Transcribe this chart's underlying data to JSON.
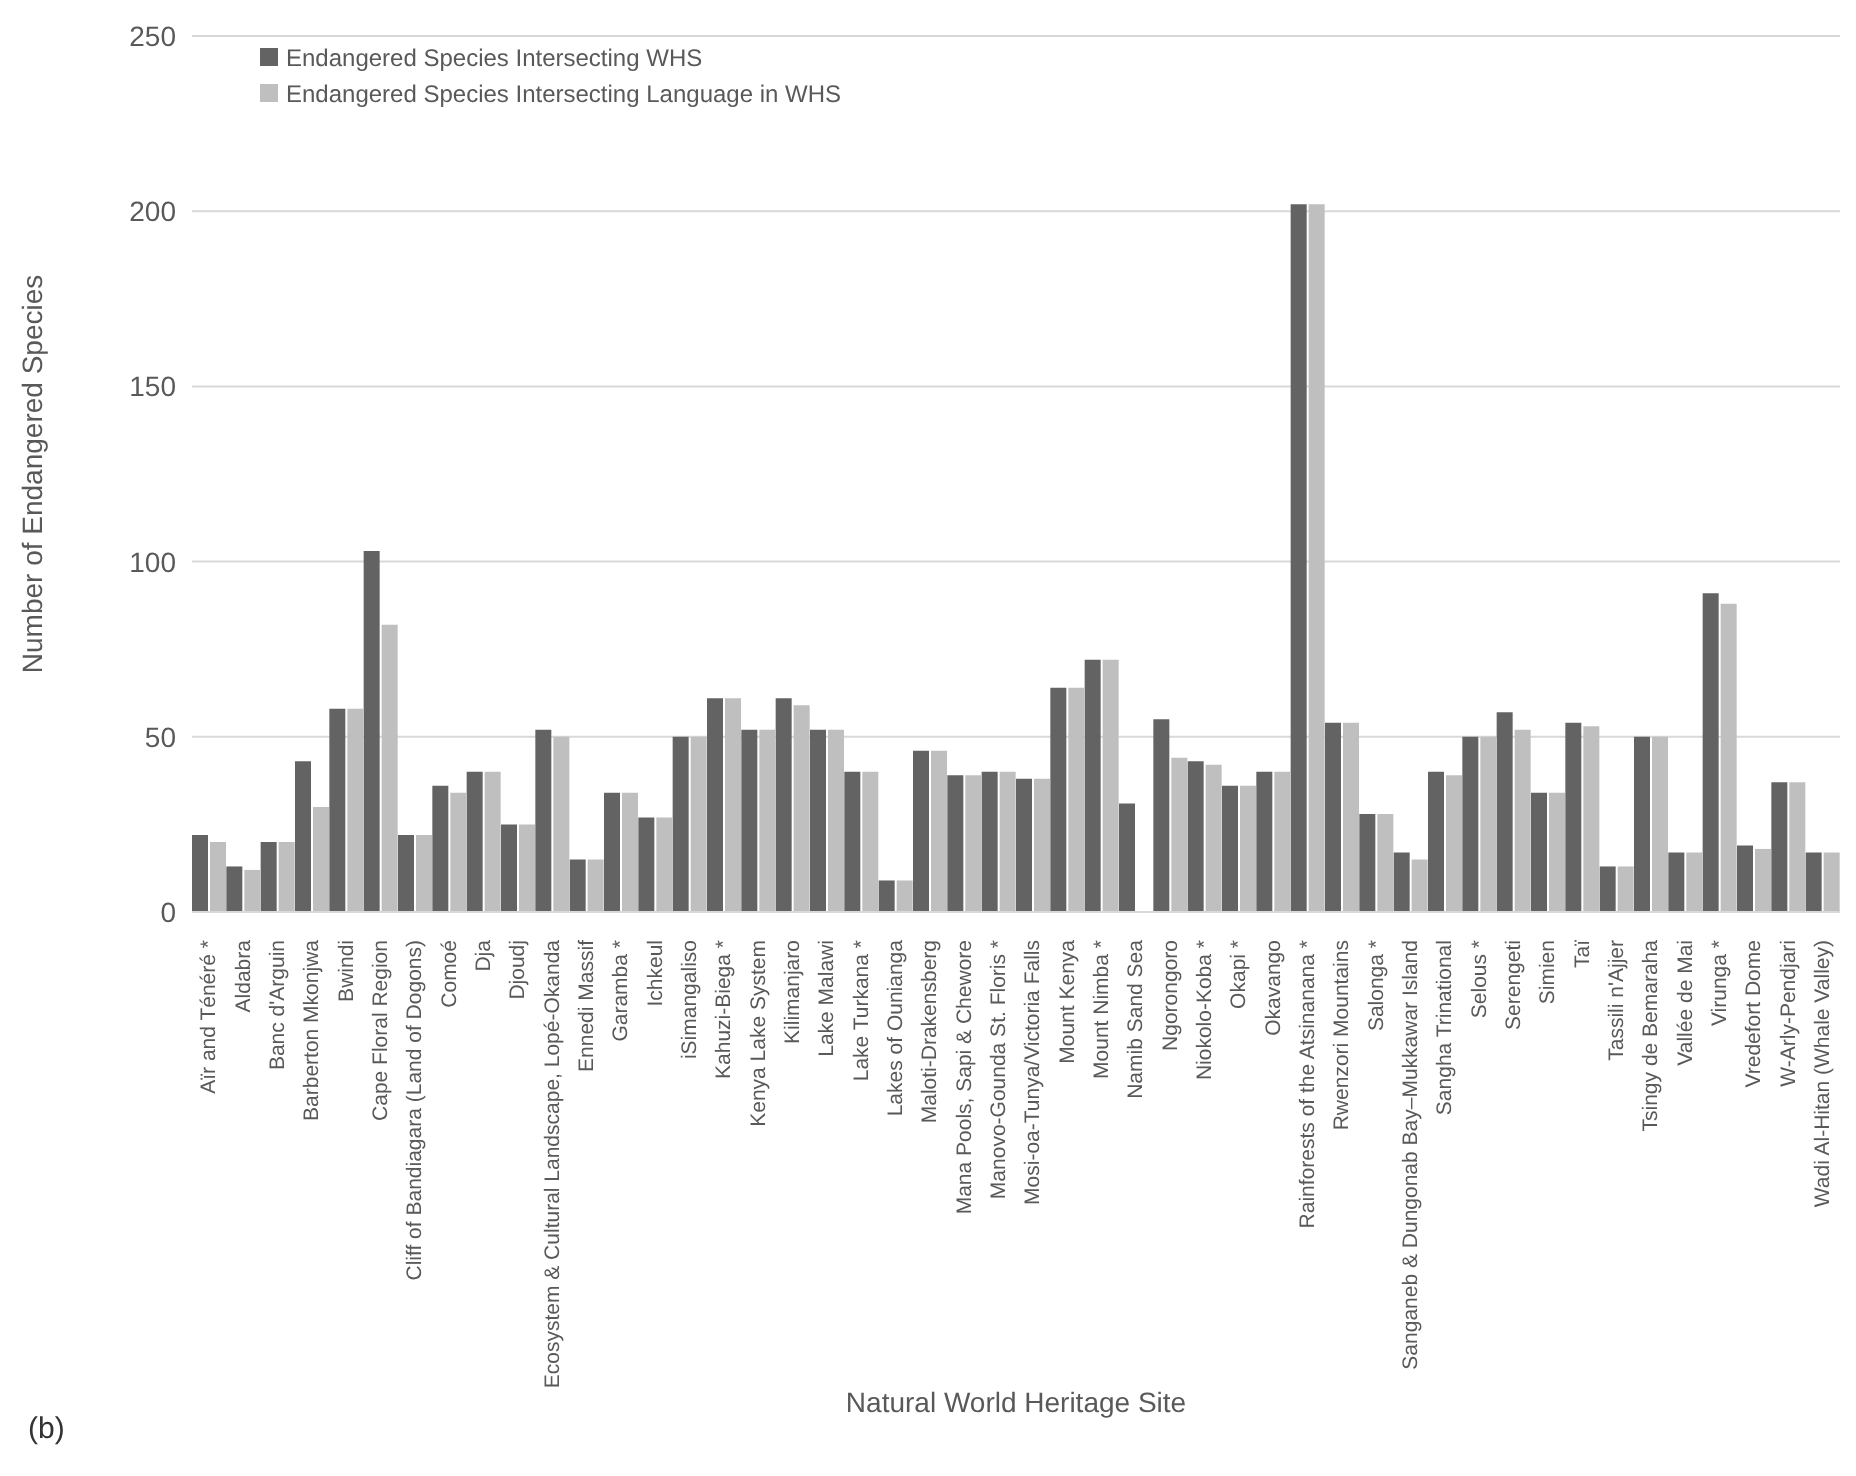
{
  "chart_data": {
    "type": "bar",
    "xlabel": "Natural World Heritage Site",
    "ylabel": "Number of Endangered Species",
    "annotations": [
      "(b)"
    ],
    "categories": [
      "Aïr and Ténéré *",
      "Aldabra",
      "Banc d'Arguin",
      "Barberton Mkonjwa",
      "Bwindi",
      "Cape Floral Region",
      "Cliff of Bandiagara (Land of Dogons)",
      "Comoé",
      "Dja",
      "Djoudj",
      "Ecosystem & Cultural Landscape, Lopé-Okanda",
      "Ennedi Massif",
      "Garamba *",
      "Ichkeul",
      "iSimangaliso",
      "Kahuzi-Biega *",
      "Kenya Lake System",
      "Kilimanjaro",
      "Lake Malawi",
      "Lake Turkana *",
      "Lakes of Ounianga",
      "Maloti-Drakensberg",
      "Mana Pools, Sapi & Chewore",
      "Manovo-Gounda St. Floris *",
      "Mosi-oa-Tunya/Victoria Falls",
      "Mount Kenya",
      "Mount Nimba *",
      "Namib Sand Sea",
      "Ngorongoro",
      "Niokolo-Koba *",
      "Okapi *",
      "Okavango",
      "Rainforests of the Atsinanana *",
      "Rwenzori Mountains",
      "Salonga *",
      "Sanganeb & Dungonab Bay–Mukkawar Island",
      "Sangha Trinational",
      "Selous *",
      "Serengeti",
      "Simien",
      "Taï",
      "Tassili n'Ajjer",
      "Tsingy de Bemaraha",
      "Vallée de Mai",
      "Virunga *",
      "Vredefort Dome",
      "W-Arly-Pendjari",
      "Wadi Al-Hitan (Whale Valley)"
    ],
    "series": [
      {
        "name": "Endangered Species Intersecting WHS",
        "color": "#636363",
        "values": [
          22,
          13,
          20,
          43,
          58,
          103,
          22,
          36,
          40,
          25,
          52,
          15,
          34,
          27,
          50,
          61,
          52,
          61,
          52,
          40,
          9,
          46,
          39,
          40,
          38,
          64,
          72,
          31,
          55,
          43,
          36,
          40,
          202,
          54,
          28,
          17,
          40,
          50,
          57,
          34,
          54,
          13,
          50,
          17,
          91,
          19,
          37,
          17
        ]
      },
      {
        "name": "Endangered Species Intersecting Language in WHS",
        "color": "#bfbfbf",
        "values": [
          20,
          12,
          20,
          30,
          58,
          82,
          22,
          34,
          40,
          25,
          50,
          15,
          34,
          27,
          50,
          61,
          52,
          59,
          52,
          40,
          9,
          46,
          39,
          40,
          38,
          64,
          72,
          0,
          44,
          42,
          36,
          40,
          202,
          54,
          28,
          15,
          39,
          50,
          52,
          34,
          53,
          13,
          50,
          17,
          88,
          18,
          37,
          17
        ]
      }
    ],
    "ylim": [
      0,
      250
    ],
    "yticks": [
      0,
      50,
      100,
      150,
      200,
      250
    ],
    "grid": "y",
    "legend": "top left"
  }
}
